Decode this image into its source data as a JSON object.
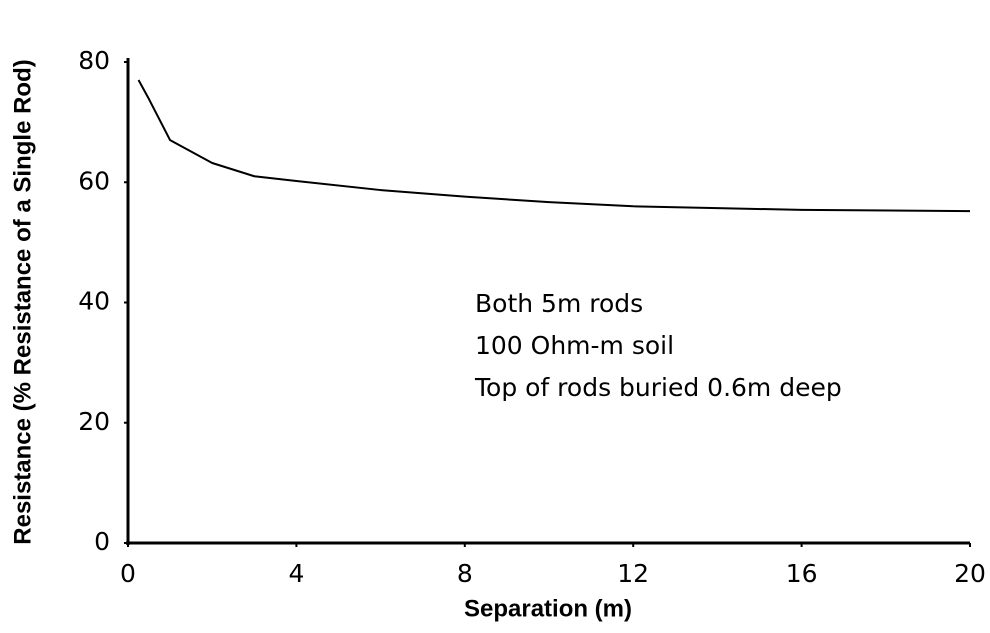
{
  "chart_data": {
    "type": "line",
    "xlabel": "Separation (m)",
    "ylabel": "Resistance (% Resistance of a Single Rod)",
    "annotations": [
      "Both 5m rods",
      "100 Ohm-m soil",
      "Top of rods buried 0.6m deep"
    ],
    "x": [
      0.25,
      0.5,
      1,
      2,
      3,
      4,
      6,
      8,
      10,
      12,
      14,
      16,
      20
    ],
    "series": [
      {
        "name": "Resistance",
        "color": "#000000",
        "values": [
          77,
          73.8,
          67,
          63.2,
          61,
          60.2,
          58.7,
          57.6,
          56.7,
          56,
          55.7,
          55.4,
          55.2
        ]
      }
    ],
    "xlim": [
      0,
      20
    ],
    "xticks": [
      0,
      4,
      8,
      12,
      16,
      20
    ],
    "ylim": [
      0,
      80
    ],
    "yticks": [
      0,
      20,
      40,
      60,
      80
    ],
    "grid": false
  }
}
